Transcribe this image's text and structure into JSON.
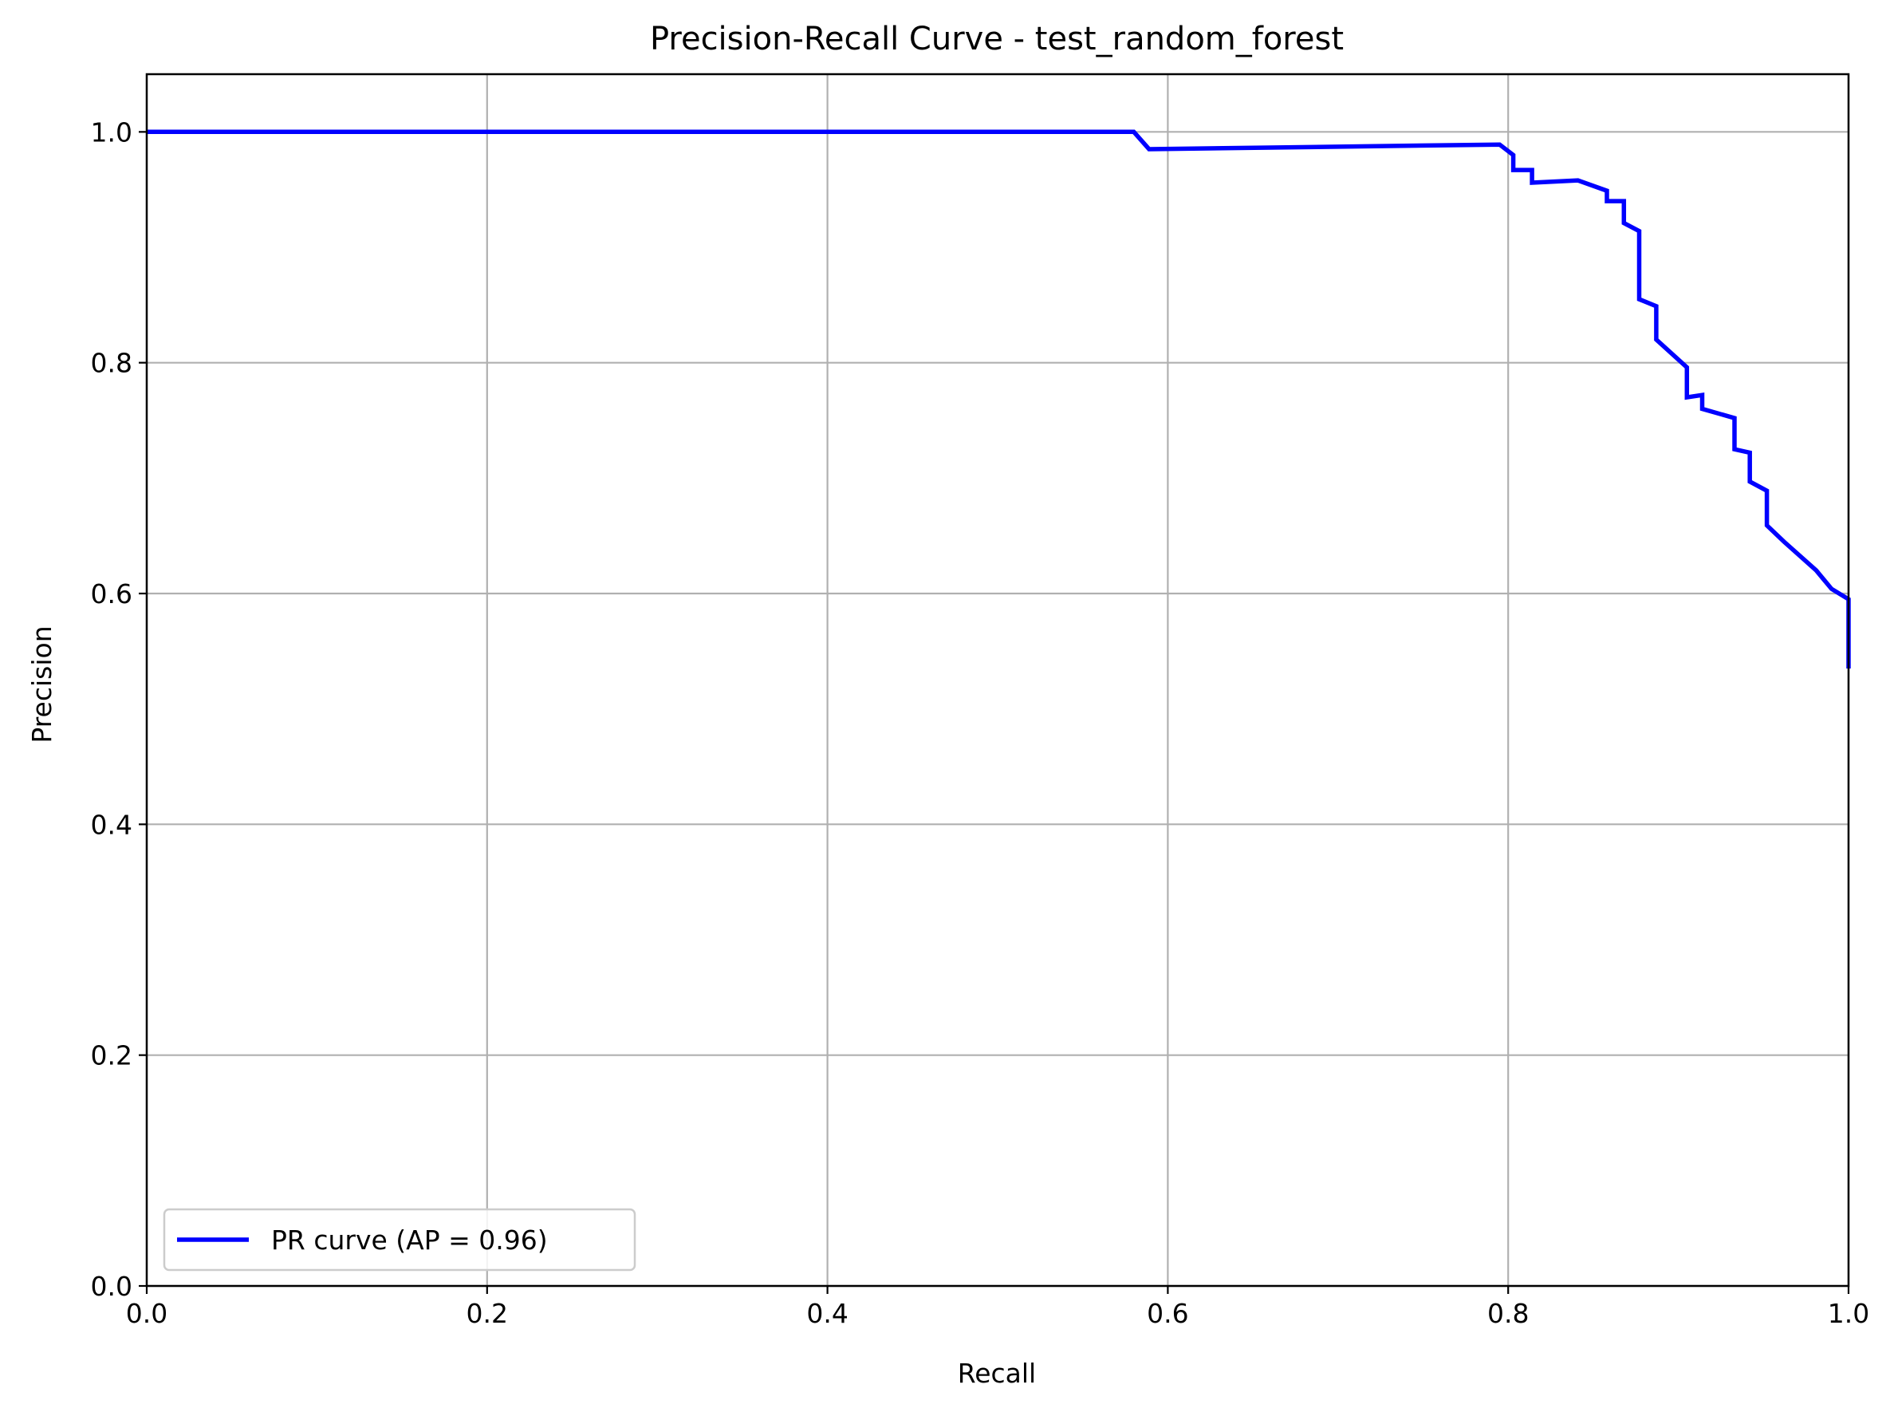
{
  "chart_data": {
    "type": "line",
    "title": "Precision-Recall Curve - test_random_forest",
    "xlabel": "Recall",
    "ylabel": "Precision",
    "xlim": [
      0.0,
      1.0
    ],
    "ylim": [
      0.0,
      1.05
    ],
    "xticks": [
      0.0,
      0.2,
      0.4,
      0.6,
      0.8,
      1.0
    ],
    "xtick_labels": [
      "0.0",
      "0.2",
      "0.4",
      "0.6",
      "0.8",
      "1.0"
    ],
    "yticks": [
      0.0,
      0.2,
      0.4,
      0.6,
      0.8,
      1.0
    ],
    "ytick_labels": [
      "0.0",
      "0.2",
      "0.4",
      "0.6",
      "0.8",
      "1.0"
    ],
    "grid": true,
    "legend_position": "lower-left",
    "series": [
      {
        "name": "PR curve (AP = 0.96)",
        "color": "#0000ff",
        "points": [
          [
            0.0,
            1.0
          ],
          [
            0.58,
            1.0
          ],
          [
            0.589,
            0.985
          ],
          [
            0.795,
            0.989
          ],
          [
            0.803,
            0.98
          ],
          [
            0.803,
            0.967
          ],
          [
            0.814,
            0.967
          ],
          [
            0.814,
            0.956
          ],
          [
            0.841,
            0.958
          ],
          [
            0.858,
            0.949
          ],
          [
            0.858,
            0.94
          ],
          [
            0.868,
            0.94
          ],
          [
            0.868,
            0.921
          ],
          [
            0.877,
            0.914
          ],
          [
            0.877,
            0.855
          ],
          [
            0.887,
            0.849
          ],
          [
            0.887,
            0.82
          ],
          [
            0.905,
            0.796
          ],
          [
            0.905,
            0.77
          ],
          [
            0.914,
            0.772
          ],
          [
            0.914,
            0.76
          ],
          [
            0.933,
            0.752
          ],
          [
            0.933,
            0.725
          ],
          [
            0.942,
            0.722
          ],
          [
            0.942,
            0.697
          ],
          [
            0.952,
            0.689
          ],
          [
            0.952,
            0.659
          ],
          [
            0.962,
            0.645
          ],
          [
            0.981,
            0.62
          ],
          [
            0.99,
            0.604
          ],
          [
            1.0,
            0.595
          ],
          [
            1.0,
            0.535
          ]
        ]
      }
    ]
  }
}
